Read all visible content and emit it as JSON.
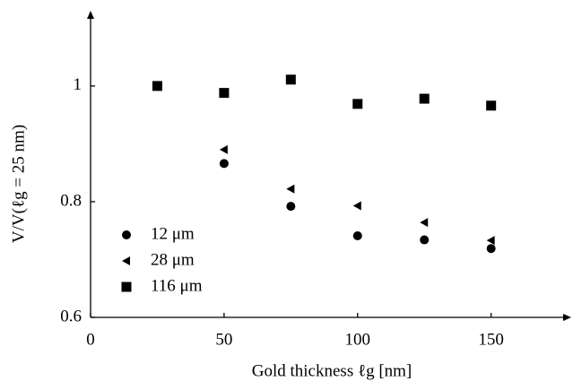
{
  "chart_data": {
    "type": "scatter",
    "xlabel": "Gold thickness ℓg [nm]",
    "ylabel": "V/V(ℓg = 25 nm)",
    "xlim": [
      0,
      180
    ],
    "ylim": [
      0.6,
      1.13
    ],
    "xticks": [
      0,
      50,
      100,
      150
    ],
    "yticks": [
      0.6,
      0.8,
      1
    ],
    "grid": false,
    "legend": "lower left",
    "series": [
      {
        "name": "12 μm",
        "marker": "circle",
        "color": "#000000",
        "x": [
          50,
          75,
          100,
          125,
          150
        ],
        "values": [
          0.866,
          0.792,
          0.741,
          0.734,
          0.719
        ]
      },
      {
        "name": "28 μm",
        "marker": "triangle-left",
        "color": "#000000",
        "x": [
          50,
          75,
          100,
          125,
          150
        ],
        "values": [
          0.89,
          0.822,
          0.793,
          0.764,
          0.733
        ]
      },
      {
        "name": "116 μm",
        "marker": "square",
        "color": "#000000",
        "x": [
          25,
          50,
          75,
          100,
          125,
          150
        ],
        "values": [
          1.0,
          0.988,
          1.011,
          0.969,
          0.978,
          0.966
        ]
      }
    ]
  }
}
